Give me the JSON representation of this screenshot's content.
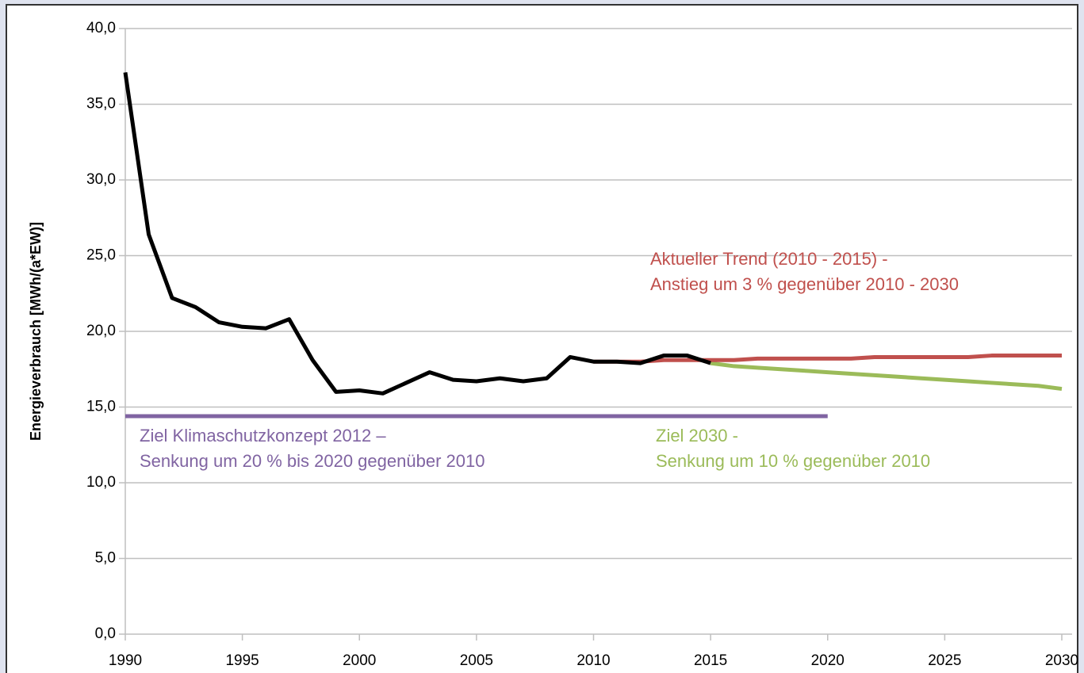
{
  "chart_data": {
    "type": "line",
    "y_label": "Energieverbrauch [MWh/(a*EW)]",
    "x": [
      1990,
      1991,
      1992,
      1993,
      1994,
      1995,
      1996,
      1997,
      1998,
      1999,
      2000,
      2001,
      2002,
      2003,
      2004,
      2005,
      2006,
      2007,
      2008,
      2009,
      2010,
      2011,
      2012,
      2013,
      2014,
      2015,
      2016,
      2017,
      2018,
      2019,
      2020,
      2021,
      2022,
      2023,
      2024,
      2025,
      2026,
      2027,
      2028,
      2029,
      2030
    ],
    "series": [
      {
        "color": "#000000",
        "values": [
          37.1,
          26.4,
          22.2,
          21.6,
          20.6,
          20.3,
          20.2,
          20.8,
          18.1,
          16.0,
          16.1,
          15.9,
          16.6,
          17.3,
          16.8,
          16.7,
          16.9,
          16.7,
          16.9,
          18.3,
          18.0,
          18.0,
          17.9,
          18.4,
          18.4,
          17.9,
          null,
          null,
          null,
          null,
          null,
          null,
          null,
          null,
          null,
          null,
          null,
          null,
          null,
          null,
          null
        ]
      },
      {
        "color": "#c0504d",
        "values": [
          null,
          null,
          null,
          null,
          null,
          null,
          null,
          null,
          null,
          null,
          null,
          null,
          null,
          null,
          null,
          null,
          null,
          null,
          null,
          null,
          18.0,
          18.0,
          18.0,
          18.1,
          18.1,
          18.1,
          18.1,
          18.2,
          18.2,
          18.2,
          18.2,
          18.2,
          18.3,
          18.3,
          18.3,
          18.3,
          18.3,
          18.4,
          18.4,
          18.4,
          18.4
        ]
      },
      {
        "color": "#9bbb59",
        "values": [
          null,
          null,
          null,
          null,
          null,
          null,
          null,
          null,
          null,
          null,
          null,
          null,
          null,
          null,
          null,
          null,
          null,
          null,
          null,
          null,
          null,
          null,
          null,
          null,
          null,
          17.9,
          17.7,
          17.6,
          17.5,
          17.4,
          17.3,
          17.2,
          17.1,
          17.0,
          16.9,
          16.8,
          16.7,
          16.6,
          16.5,
          16.4,
          16.2
        ]
      },
      {
        "color": "#8064a2",
        "values": [
          14.4,
          14.4,
          14.4,
          14.4,
          14.4,
          14.4,
          14.4,
          14.4,
          14.4,
          14.4,
          14.4,
          14.4,
          14.4,
          14.4,
          14.4,
          14.4,
          14.4,
          14.4,
          14.4,
          14.4,
          14.4,
          14.4,
          14.4,
          14.4,
          14.4,
          14.4,
          14.4,
          14.4,
          14.4,
          14.4,
          14.4,
          null,
          null,
          null,
          null,
          null,
          null,
          null,
          null,
          null,
          null
        ]
      }
    ],
    "xlim": [
      1990,
      2030
    ],
    "xticks": [
      1990,
      1995,
      2000,
      2005,
      2010,
      2015,
      2020,
      2025,
      2030
    ],
    "ylim": [
      0,
      40
    ],
    "yticks": [
      {
        "value": 0,
        "label": "0,0"
      },
      {
        "value": 5,
        "label": "5,0"
      },
      {
        "value": 10,
        "label": "10,0"
      },
      {
        "value": 15,
        "label": "15,0"
      },
      {
        "value": 20,
        "label": "20,0"
      },
      {
        "value": 25,
        "label": "25,0"
      },
      {
        "value": 30,
        "label": "30,0"
      },
      {
        "value": 35,
        "label": "35,0"
      },
      {
        "value": 40,
        "label": "40,0"
      }
    ],
    "grid": true,
    "annotations": [
      {
        "color": "#c0504d",
        "lines": [
          "Aktueller Trend (2010 - 2015) -",
          "Anstieg um 3 % gegenüber 2010 - 2030"
        ]
      },
      {
        "color": "#8064a2",
        "lines": [
          "Ziel Klimaschutzkonzept 2012 –",
          "Senkung um 20 % bis 2020 gegenüber 2010"
        ]
      },
      {
        "color": "#9bbb59",
        "lines": [
          "Ziel 2030 -",
          "Senkung um 10 % gegenüber 2010"
        ]
      }
    ]
  }
}
